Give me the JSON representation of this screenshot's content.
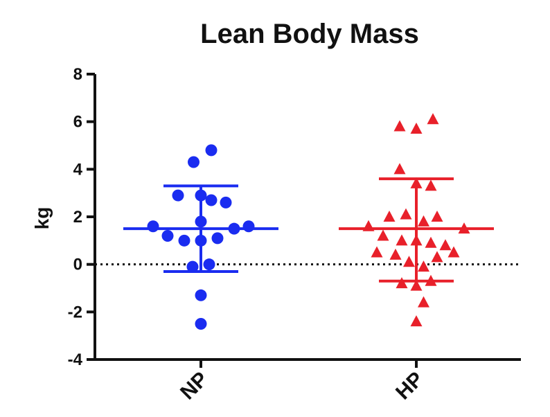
{
  "chart_data": {
    "type": "scatter",
    "title": "Lean Body Mass",
    "ylabel": "kg",
    "xlabel": "",
    "ylim": [
      -4,
      8
    ],
    "yticks": [
      -4,
      -2,
      0,
      2,
      4,
      6,
      8
    ],
    "categories": [
      "NP",
      "HP"
    ],
    "reference_line": {
      "y": 0,
      "style": "dotted"
    },
    "grid": false,
    "series": [
      {
        "category": "NP",
        "marker": "circle",
        "color": "#1a2cf0",
        "mean": 1.5,
        "sd_upper": 3.3,
        "sd_lower": -0.3,
        "points": [
          {
            "offset": 0.1,
            "y": 4.8
          },
          {
            "offset": -0.07,
            "y": 4.3
          },
          {
            "offset": -0.22,
            "y": 2.9
          },
          {
            "offset": 0.1,
            "y": 2.7
          },
          {
            "offset": 0.24,
            "y": 2.6
          },
          {
            "offset": 0.0,
            "y": 2.9
          },
          {
            "offset": -0.46,
            "y": 1.6
          },
          {
            "offset": 0.0,
            "y": 1.8
          },
          {
            "offset": 0.32,
            "y": 1.5
          },
          {
            "offset": 0.46,
            "y": 1.6
          },
          {
            "offset": -0.32,
            "y": 1.2
          },
          {
            "offset": -0.16,
            "y": 1.0
          },
          {
            "offset": 0.0,
            "y": 1.0
          },
          {
            "offset": 0.16,
            "y": 1.1
          },
          {
            "offset": -0.08,
            "y": -0.1
          },
          {
            "offset": 0.08,
            "y": 0.0
          },
          {
            "offset": 0.0,
            "y": -1.3
          },
          {
            "offset": 0.0,
            "y": -2.5
          }
        ]
      },
      {
        "category": "HP",
        "marker": "triangle",
        "color": "#e8202a",
        "mean": 1.5,
        "sd_upper": 3.6,
        "sd_lower": -0.7,
        "points": [
          {
            "offset": 0.16,
            "y": 6.1
          },
          {
            "offset": -0.16,
            "y": 5.8
          },
          {
            "offset": 0.0,
            "y": 5.7
          },
          {
            "offset": -0.16,
            "y": 4.0
          },
          {
            "offset": 0.0,
            "y": 3.4
          },
          {
            "offset": 0.14,
            "y": 3.3
          },
          {
            "offset": -0.26,
            "y": 2.0
          },
          {
            "offset": -0.1,
            "y": 2.1
          },
          {
            "offset": 0.07,
            "y": 1.8
          },
          {
            "offset": 0.2,
            "y": 2.0
          },
          {
            "offset": -0.46,
            "y": 1.6
          },
          {
            "offset": 0.46,
            "y": 1.5
          },
          {
            "offset": -0.32,
            "y": 1.2
          },
          {
            "offset": -0.14,
            "y": 1.0
          },
          {
            "offset": 0.0,
            "y": 1.0
          },
          {
            "offset": 0.14,
            "y": 0.9
          },
          {
            "offset": 0.28,
            "y": 0.8
          },
          {
            "offset": -0.38,
            "y": 0.5
          },
          {
            "offset": -0.2,
            "y": 0.4
          },
          {
            "offset": 0.2,
            "y": 0.3
          },
          {
            "offset": 0.36,
            "y": 0.5
          },
          {
            "offset": -0.07,
            "y": 0.1
          },
          {
            "offset": 0.07,
            "y": -0.1
          },
          {
            "offset": -0.14,
            "y": -0.8
          },
          {
            "offset": 0.0,
            "y": -0.9
          },
          {
            "offset": 0.14,
            "y": -0.7
          },
          {
            "offset": 0.07,
            "y": -1.6
          },
          {
            "offset": 0.0,
            "y": -2.4
          }
        ]
      }
    ]
  }
}
